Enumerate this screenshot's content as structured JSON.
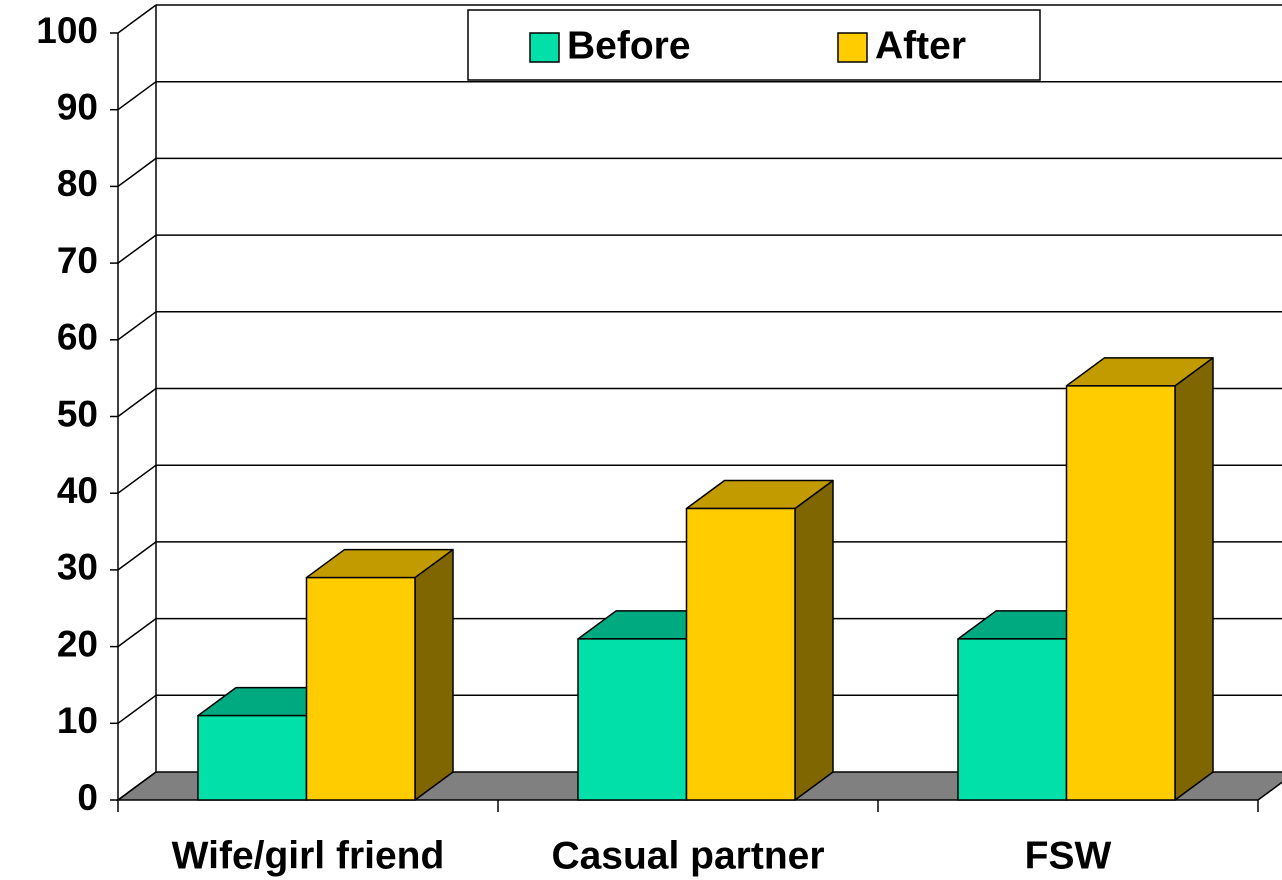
{
  "chart_data": {
    "type": "bar",
    "categories": [
      "Wife/girl friend",
      "Casual partner",
      "FSW"
    ],
    "series": [
      {
        "name": "Before",
        "color": "#00e0a8",
        "values": [
          11,
          21,
          21
        ]
      },
      {
        "name": "After",
        "color": "#ffcc00",
        "values": [
          29,
          38,
          54
        ]
      }
    ],
    "ylim": [
      0,
      100
    ],
    "yticks": [
      0,
      10,
      20,
      30,
      40,
      50,
      60,
      70,
      80,
      90,
      100
    ],
    "grid": true,
    "legend": "top"
  }
}
